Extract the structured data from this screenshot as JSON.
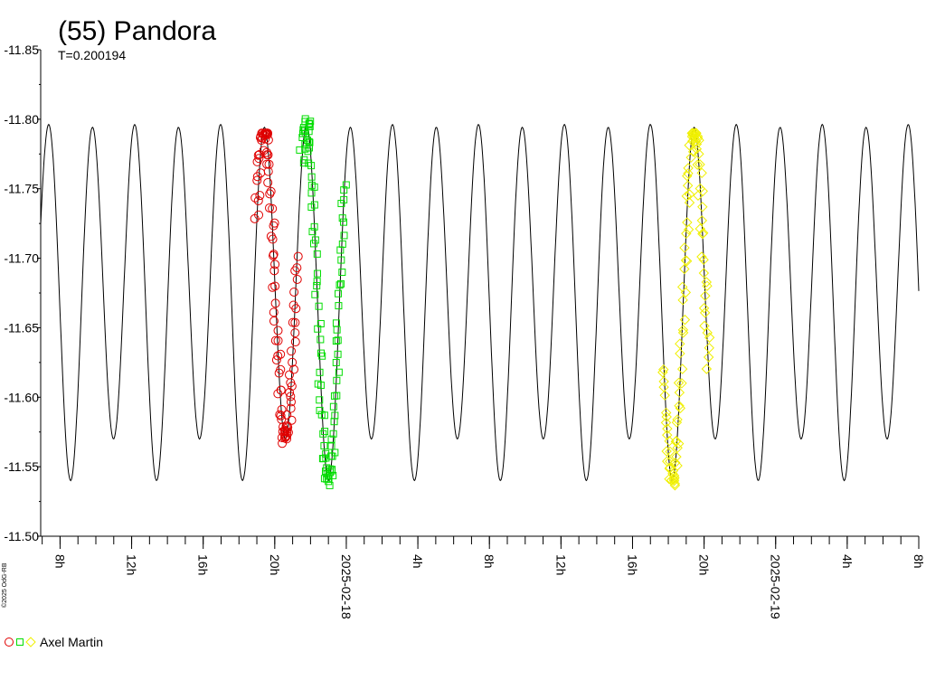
{
  "chart_data": {
    "type": "scatter",
    "title": "(55) Pandora",
    "subtitle": "T=0.200194",
    "xlabel": "",
    "ylabel": "",
    "grid": false,
    "ylim": [
      -11.5,
      -11.85
    ],
    "y_inverted": true,
    "yticks": [
      "-11.85",
      "-11.80",
      "-11.75",
      "-11.70",
      "-11.65",
      "-11.60",
      "-11.55",
      "-11.50"
    ],
    "y_tick_values": [
      -11.85,
      -11.8,
      -11.75,
      -11.7,
      -11.65,
      -11.6,
      -11.55,
      -11.5
    ],
    "xlim": [
      "2025-02-17T06:55",
      "2025-02-19T08:00"
    ],
    "x_major_ticks": [
      {
        "t": "2025-02-17T08:00",
        "label": "8h"
      },
      {
        "t": "2025-02-17T12:00",
        "label": "12h"
      },
      {
        "t": "2025-02-17T16:00",
        "label": "16h"
      },
      {
        "t": "2025-02-17T20:00",
        "label": "20h"
      },
      {
        "t": "2025-02-18T00:00",
        "label": "2025-02-18"
      },
      {
        "t": "2025-02-18T04:00",
        "label": "4h"
      },
      {
        "t": "2025-02-18T08:00",
        "label": "8h"
      },
      {
        "t": "2025-02-18T12:00",
        "label": "12h"
      },
      {
        "t": "2025-02-18T16:00",
        "label": "16h"
      },
      {
        "t": "2025-02-18T20:00",
        "label": "20h"
      },
      {
        "t": "2025-02-19T00:00",
        "label": "2025-02-19"
      },
      {
        "t": "2025-02-19T04:00",
        "label": "4h"
      },
      {
        "t": "2025-02-19T08:00",
        "label": "8h"
      }
    ],
    "model": {
      "period_hours": 4.80466,
      "mean_mag": -11.675,
      "harmonic_1": {
        "amplitude": 0.015,
        "max_at": "2025-02-17T18:15"
      },
      "harmonic_2": {
        "amplitude": 0.12,
        "max_at": "2025-02-17T20:36"
      }
    },
    "series": [
      {
        "marker": "circle",
        "color": "#e00000",
        "t_start": "2025-02-17T19:00",
        "t_end": "2025-02-17T21:15",
        "min_mag": -11.535,
        "max_mag": -11.79
      },
      {
        "marker": "square",
        "color": "#00dd00",
        "t_start": "2025-02-17T21:30",
        "t_end": "2025-02-17T23:55",
        "min_mag": -11.51,
        "max_mag": -11.815
      },
      {
        "marker": "diamond",
        "color": "#f0f000",
        "t_start": "2025-02-18T17:45",
        "t_end": "2025-02-18T20:15",
        "min_mag": -11.51,
        "max_mag": -11.79
      }
    ],
    "legend": {
      "label": "Axel Martin",
      "position": "bottom-left"
    },
    "credit": "©2025 OdG-RB"
  }
}
